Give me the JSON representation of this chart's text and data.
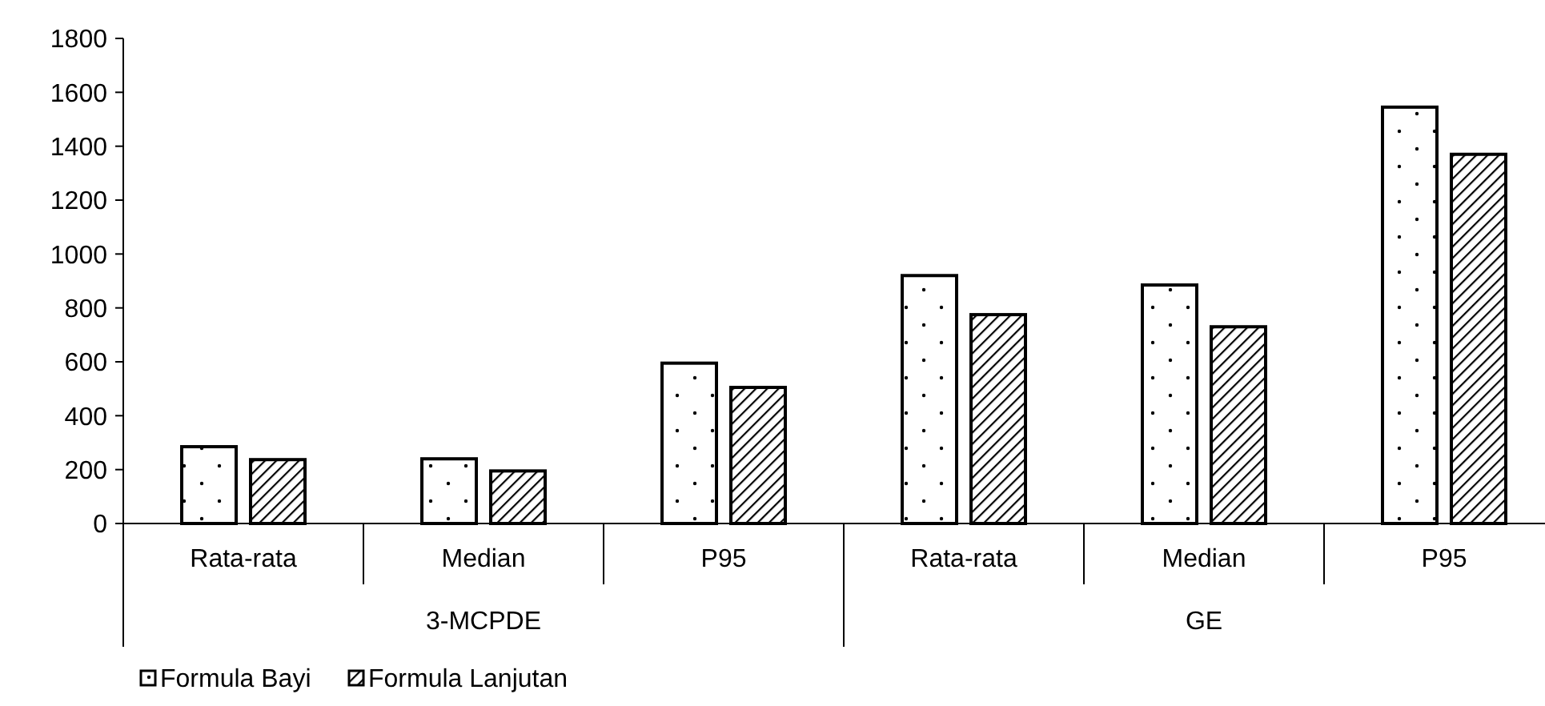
{
  "chart_data": {
    "type": "bar",
    "categories": [
      "Rata-rata",
      "Median",
      "P95",
      "Rata-rata",
      "Median",
      "P95"
    ],
    "series": [
      {
        "name": "Formula Bayi",
        "color": "#000000",
        "values": [
          285,
          240,
          595,
          920,
          885,
          1545
        ]
      },
      {
        "name": "Formula Lanjutan",
        "color": "#000000",
        "values": [
          237,
          195,
          505,
          775,
          730,
          1370
        ]
      }
    ],
    "annotations": [
      "3-MCPDE",
      "GE"
    ],
    "ylim": [
      0,
      1800
    ],
    "yticks": [
      0,
      200,
      400,
      600,
      800,
      1000,
      1200,
      1400,
      1600,
      1800
    ],
    "grid": false,
    "legend": "bottom left"
  }
}
